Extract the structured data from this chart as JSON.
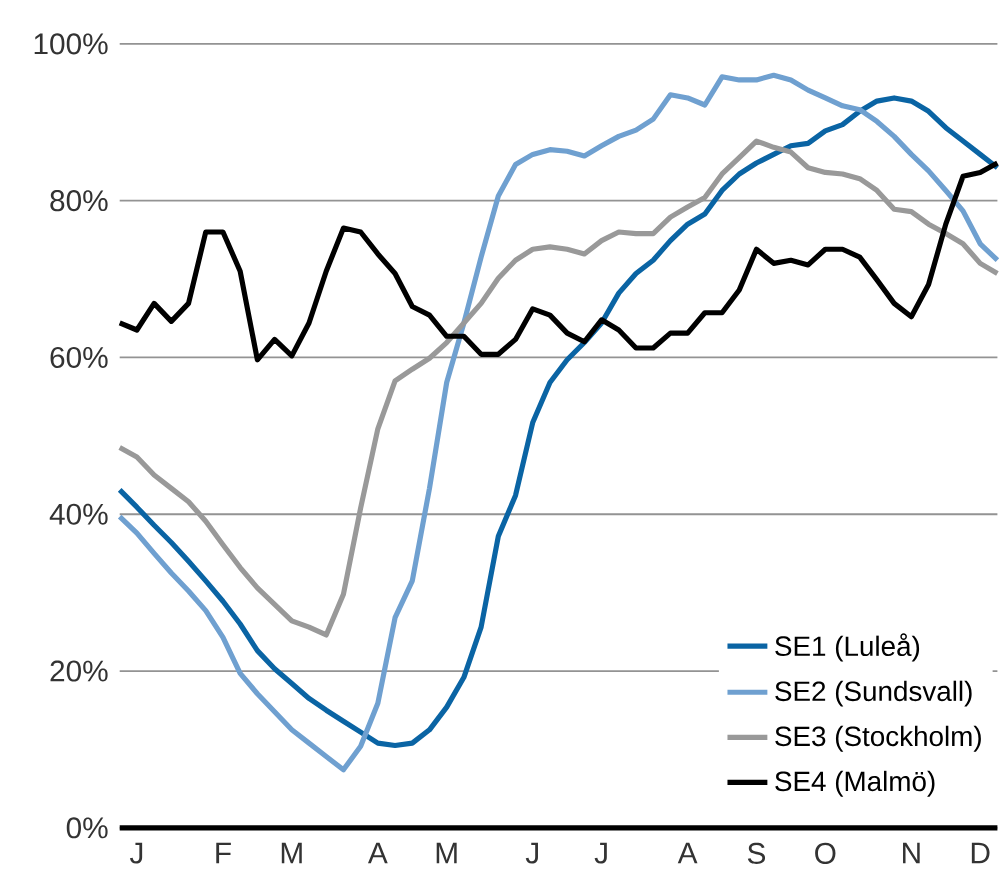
{
  "chart_data": {
    "type": "line",
    "categories": [
      null,
      "J",
      null,
      null,
      null,
      null,
      "F",
      null,
      null,
      null,
      "M",
      null,
      null,
      null,
      null,
      "A",
      null,
      null,
      null,
      "M",
      null,
      null,
      null,
      null,
      "J",
      null,
      null,
      null,
      "J",
      null,
      null,
      null,
      null,
      "A",
      null,
      null,
      null,
      "S",
      null,
      null,
      null,
      "O",
      null,
      null,
      null,
      null,
      "N",
      null,
      null,
      null,
      "D",
      null
    ],
    "series": [
      {
        "name": "SE1 (Luleå)",
        "color": "#0a64a4",
        "values": [
          43.1,
          40.9,
          38.6,
          36.4,
          34.0,
          31.5,
          28.9,
          26.0,
          22.6,
          20.3,
          18.4,
          16.5,
          15.0,
          13.6,
          12.2,
          10.8,
          10.5,
          10.8,
          12.5,
          15.4,
          19.2,
          25.6,
          37.2,
          42.4,
          51.7,
          56.8,
          59.7,
          61.9,
          64.4,
          68.2,
          70.7,
          72.4,
          74.9,
          77.0,
          78.3,
          81.3,
          83.4,
          84.8,
          85.9,
          87.0,
          87.3,
          88.9,
          89.7,
          91.4,
          92.7,
          93.1,
          92.7,
          91.4,
          89.3,
          87.6,
          85.9,
          84.2
        ]
      },
      {
        "name": "SE2 (Sundsvall)",
        "color": "#6fa0d0",
        "values": [
          39.7,
          37.6,
          35.0,
          32.5,
          30.2,
          27.7,
          24.3,
          19.7,
          17.1,
          14.8,
          12.5,
          10.8,
          9.1,
          7.4,
          10.4,
          15.9,
          26.8,
          31.5,
          43.3,
          56.8,
          64.4,
          72.8,
          80.6,
          84.6,
          85.9,
          86.5,
          86.3,
          85.7,
          87.0,
          88.2,
          89.0,
          90.4,
          93.5,
          93.1,
          92.2,
          95.8,
          95.4,
          95.4,
          96.0,
          95.4,
          94.1,
          93.1,
          92.1,
          91.6,
          90.1,
          88.2,
          85.9,
          83.8,
          81.3,
          78.7,
          74.5,
          72.4
        ]
      },
      {
        "name": "SE3 (Stockholm)",
        "color": "#999999",
        "values": [
          48.5,
          47.3,
          45.0,
          43.3,
          41.6,
          39.1,
          36.1,
          33.2,
          30.6,
          28.5,
          26.4,
          25.6,
          24.6,
          29.8,
          40.8,
          50.9,
          57.0,
          58.5,
          59.9,
          61.9,
          64.4,
          66.9,
          70.1,
          72.4,
          73.8,
          74.1,
          73.8,
          73.2,
          74.9,
          76.0,
          75.8,
          75.8,
          77.9,
          79.2,
          80.4,
          83.4,
          85.5,
          87.6,
          86.8,
          86.2,
          84.2,
          83.6,
          83.4,
          82.8,
          81.3,
          78.9,
          78.6,
          77.0,
          75.8,
          74.5,
          72.0,
          70.7
        ]
      },
      {
        "name": "SE4 (Malmö)",
        "color": "#000000",
        "values": [
          64.4,
          63.5,
          66.9,
          64.6,
          66.9,
          76.0,
          76.0,
          71.0,
          59.7,
          62.3,
          60.2,
          64.4,
          71.0,
          76.5,
          76.0,
          73.2,
          70.7,
          66.5,
          65.4,
          62.7,
          62.7,
          60.4,
          60.4,
          62.3,
          66.2,
          65.4,
          63.1,
          62.0,
          64.8,
          63.5,
          61.2,
          61.2,
          63.1,
          63.1,
          65.7,
          65.7,
          68.6,
          73.8,
          72.0,
          72.4,
          71.8,
          73.8,
          73.8,
          72.8,
          69.9,
          66.9,
          65.2,
          69.3,
          77.0,
          83.1,
          83.6,
          84.8
        ]
      }
    ],
    "ylim": [
      0,
      100
    ],
    "yticks": [
      {
        "value": 0,
        "label": "0%"
      },
      {
        "value": 20,
        "label": "20%"
      },
      {
        "value": 40,
        "label": "40%"
      },
      {
        "value": 60,
        "label": "60%"
      },
      {
        "value": 80,
        "label": "80%"
      },
      {
        "value": 100,
        "label": "100%"
      }
    ],
    "grid": "y",
    "legend": "bottom right",
    "marker": "none",
    "line_style": "solid"
  }
}
